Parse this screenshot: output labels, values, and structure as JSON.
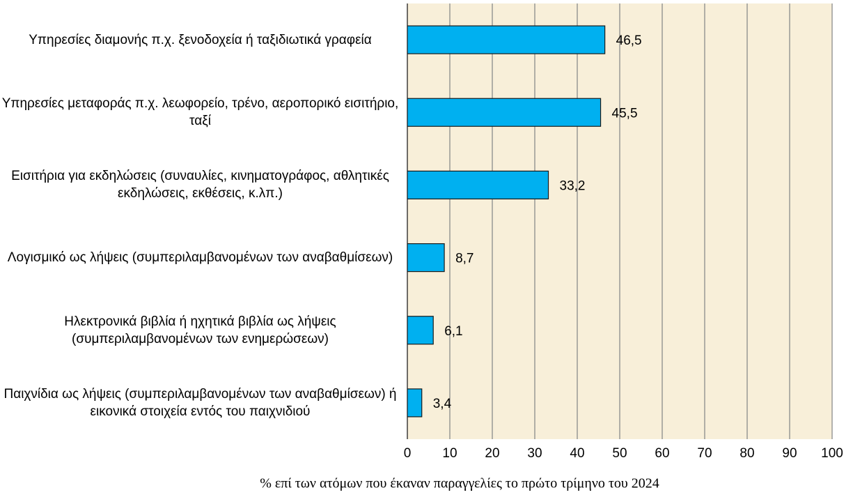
{
  "chart_data": {
    "type": "barh",
    "categories": [
      "Υπηρεσίες διαμονής π.χ. ξενοδοχεία ή ταξιδιωτικά γραφεία",
      "Υπηρεσίες μεταφοράς π.χ. λεωφορείο, τρένο, αεροπορικό εισιτήριο, ταξί",
      "Εισιτήρια για εκδηλώσεις (συναυλίες, κινηματογράφος, αθλητικές εκδηλώσεις, εκθέσεις, κ.λπ.)",
      "Λογισμικό ως λήψεις (συμπεριλαμβανομένων των αναβαθμίσεων)",
      "Ηλεκτρονικά βιβλία ή ηχητικά βιβλία ως λήψεις (συμπεριλαμβανομένων των ενημερώσεων)",
      "Παιχνίδια ως λήψεις (συμπεριλαμβανομένων των αναβαθμίσεων) ή εικονικά στοιχεία εντός του παιχνιδιού"
    ],
    "values": [
      46.5,
      45.5,
      33.2,
      8.7,
      6.1,
      3.4
    ],
    "value_labels": [
      "46,5",
      "45,5",
      "33,2",
      "8,7",
      "6,1",
      "3,4"
    ],
    "color": "#00b0f0",
    "xlabel": "%  επί των ατόμων που έκαναν παραγγελίες το πρώτο τρίμηνο του 2024",
    "xlim": [
      0,
      100
    ],
    "xticks": [
      0,
      10,
      20,
      30,
      40,
      50,
      60,
      70,
      80,
      90,
      100
    ],
    "grid": true
  }
}
